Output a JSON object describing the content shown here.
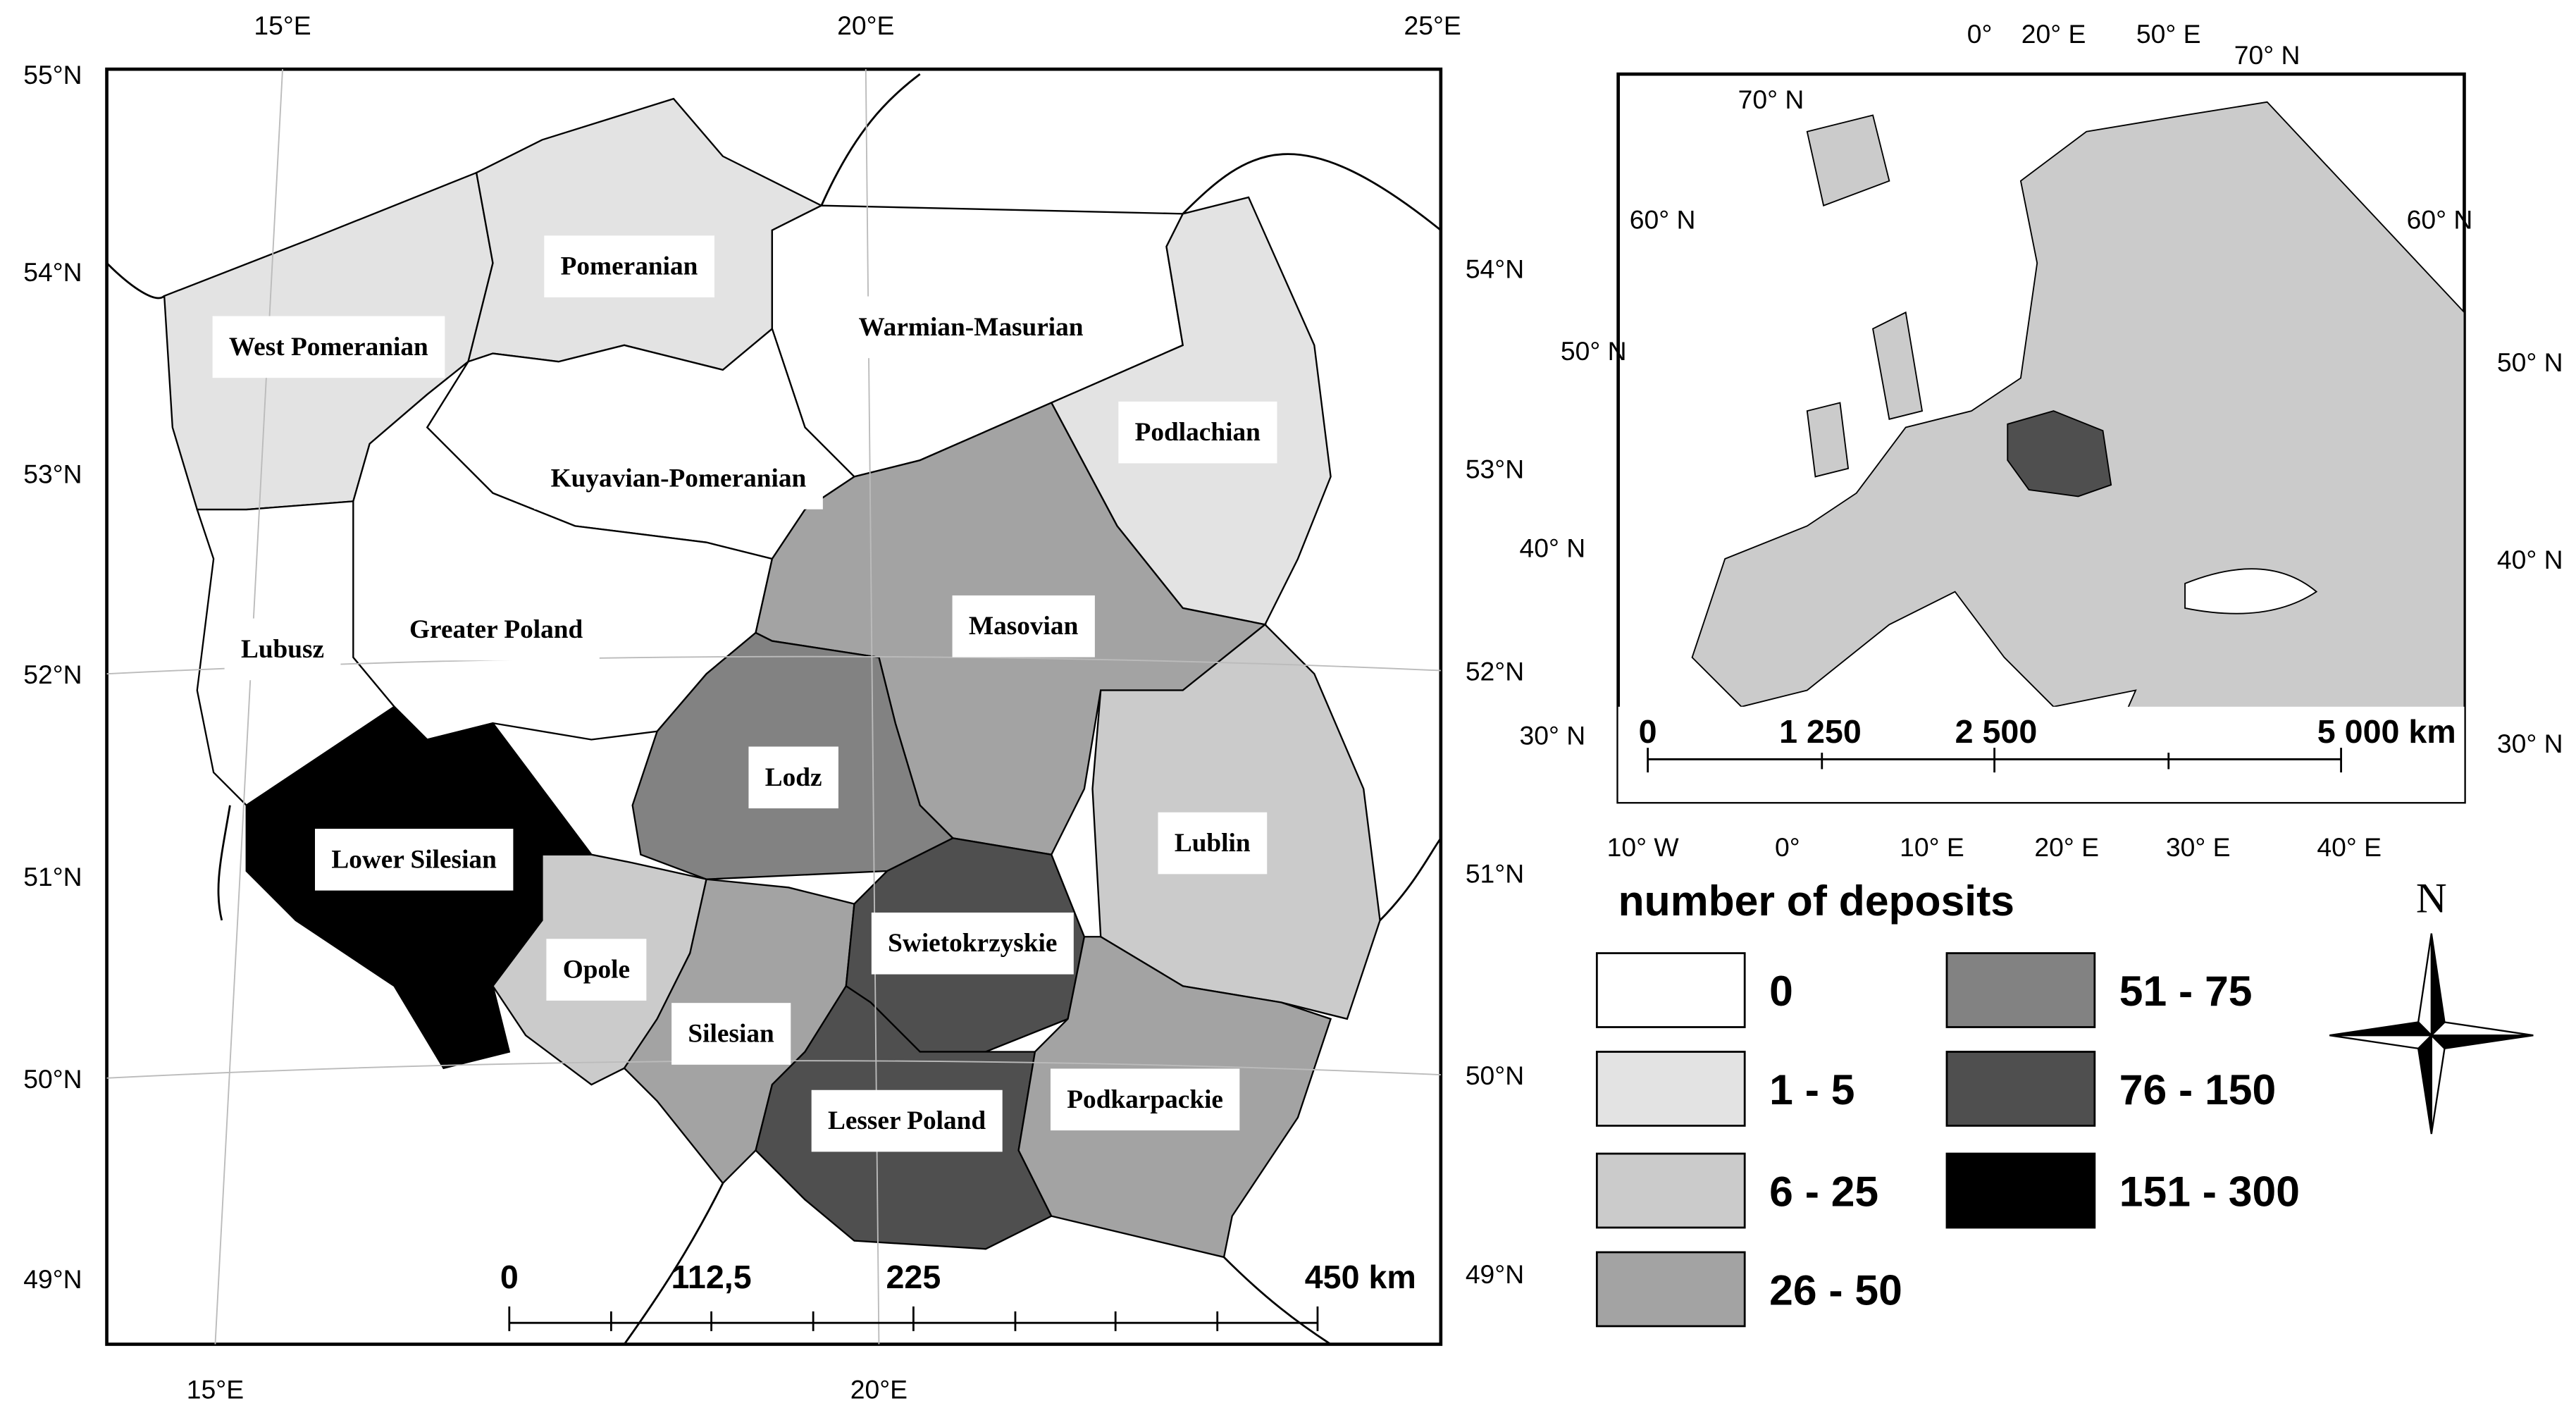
{
  "main_map": {
    "regions": [
      "West Pomeranian",
      "Pomeranian",
      "Warmian-Masurian",
      "Podlachian",
      "Kuyavian-Pomeranian",
      "Greater Poland",
      "Lubusz",
      "Masovian",
      "Lodz",
      "Lublin",
      "Lower Silesian",
      "Opole",
      "Silesian",
      "Swietokrzyskie",
      "Lesser Poland",
      "Podkarpackie"
    ],
    "lat_labels_left": [
      "55°N",
      "54°N",
      "53°N",
      "52°N",
      "51°N",
      "50°N",
      "49°N"
    ],
    "lat_labels_right": [
      "54°N",
      "53°N",
      "52°N",
      "51°N",
      "50°N",
      "49°N"
    ],
    "lon_labels_top": [
      "15°E",
      "20°E",
      "25°E"
    ],
    "lon_labels_bottom": [
      "15°E",
      "20°E"
    ],
    "scale_bar": [
      "0",
      "112,5",
      "225",
      "450 km"
    ]
  },
  "inset_map": {
    "top_labels": [
      "0°",
      "20° E",
      "50° E",
      "70° N",
      "70° N"
    ],
    "lat_labels_left": [
      "60° N",
      "50° N",
      "40° N",
      "30° N"
    ],
    "lat_labels_right": [
      "60° N",
      "50° N",
      "40° N",
      "30° N"
    ],
    "lon_labels_bottom": [
      "10° W",
      "0°",
      "10° E",
      "20° E",
      "30° E",
      "40° E"
    ],
    "scale_bar": [
      "0",
      "1 250",
      "2 500",
      "5 000 km"
    ]
  },
  "legend": {
    "title": "number of deposits",
    "classes": [
      {
        "label": "0",
        "color": "#ffffff"
      },
      {
        "label": "1 - 5",
        "color": "#e3e3e3"
      },
      {
        "label": "6 - 25",
        "color": "#cbcbcb"
      },
      {
        "label": "26 - 50",
        "color": "#a3a3a3"
      },
      {
        "label": "51 - 75",
        "color": "#828282"
      },
      {
        "label": "76 - 150",
        "color": "#4f4f4f"
      },
      {
        "label": "151 - 300",
        "color": "#000000"
      }
    ]
  },
  "north_arrow": "N"
}
